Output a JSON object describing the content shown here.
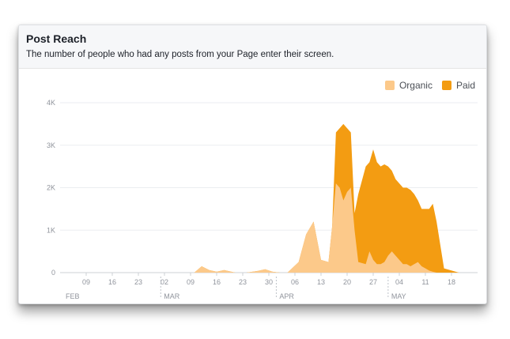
{
  "card": {
    "title": "Post Reach",
    "subtitle": "The number of people who had any posts from your Page enter their screen."
  },
  "colors": {
    "organic": "#fcc98a",
    "paid": "#f39c12",
    "axis_text": "#90949c",
    "gridline": "#ebedf0"
  },
  "chart_data": {
    "type": "area",
    "title": "",
    "xlabel": "",
    "ylabel": "",
    "ylim": [
      0,
      4000
    ],
    "yticks": [
      0,
      1000,
      2000,
      3000,
      4000
    ],
    "ytick_labels": [
      "0",
      "1K",
      "2K",
      "3K",
      "4K"
    ],
    "stacked": true,
    "legend_position": "top-right",
    "x_tick_labels": [
      "09",
      "16",
      "23",
      "02",
      "09",
      "16",
      "23",
      "30",
      "06",
      "13",
      "20",
      "27",
      "04",
      "11",
      "18"
    ],
    "month_labels": [
      "FEB",
      "MAR",
      "APR",
      "MAY"
    ],
    "x": [
      "2019-02-02",
      "2019-02-05",
      "2019-02-10",
      "2019-02-15",
      "2019-02-20",
      "2019-02-25",
      "2019-03-02",
      "2019-03-07",
      "2019-03-10",
      "2019-03-12",
      "2019-03-14",
      "2019-03-16",
      "2019-03-18",
      "2019-03-21",
      "2019-03-24",
      "2019-03-27",
      "2019-03-29",
      "2019-03-31",
      "2019-04-02",
      "2019-04-04",
      "2019-04-07",
      "2019-04-09",
      "2019-04-11",
      "2019-04-13",
      "2019-04-15",
      "2019-04-16",
      "2019-04-17",
      "2019-04-18",
      "2019-04-19",
      "2019-04-20",
      "2019-04-21",
      "2019-04-22",
      "2019-04-23",
      "2019-04-25",
      "2019-04-26",
      "2019-04-27",
      "2019-04-28",
      "2019-04-29",
      "2019-04-30",
      "2019-05-01",
      "2019-05-02",
      "2019-05-03",
      "2019-05-04",
      "2019-05-05",
      "2019-05-06",
      "2019-05-07",
      "2019-05-08",
      "2019-05-09",
      "2019-05-10",
      "2019-05-11",
      "2019-05-12",
      "2019-05-13",
      "2019-05-14",
      "2019-05-16",
      "2019-05-20",
      "2019-05-23"
    ],
    "series": [
      {
        "name": "Organic",
        "values": [
          0,
          0,
          0,
          0,
          0,
          0,
          0,
          0,
          0,
          150,
          60,
          20,
          60,
          0,
          0,
          40,
          80,
          20,
          0,
          0,
          250,
          900,
          1200,
          300,
          250,
          1100,
          2100,
          2000,
          1700,
          1900,
          2000,
          1000,
          250,
          200,
          500,
          300,
          200,
          200,
          250,
          400,
          500,
          400,
          300,
          200,
          200,
          150,
          200,
          250,
          150,
          100,
          50,
          20,
          0,
          0,
          0,
          0
        ]
      },
      {
        "name": "Paid",
        "values": [
          0,
          0,
          0,
          0,
          0,
          0,
          0,
          0,
          0,
          0,
          0,
          0,
          0,
          0,
          0,
          0,
          0,
          0,
          0,
          0,
          0,
          0,
          0,
          0,
          0,
          0,
          1200,
          1400,
          1800,
          1500,
          1300,
          400,
          1600,
          2300,
          2100,
          2600,
          2400,
          2300,
          2300,
          2100,
          1900,
          1800,
          1800,
          1800,
          1800,
          1800,
          1650,
          1450,
          1350,
          1400,
          1450,
          1600,
          1200,
          100,
          0,
          0
        ]
      }
    ]
  }
}
